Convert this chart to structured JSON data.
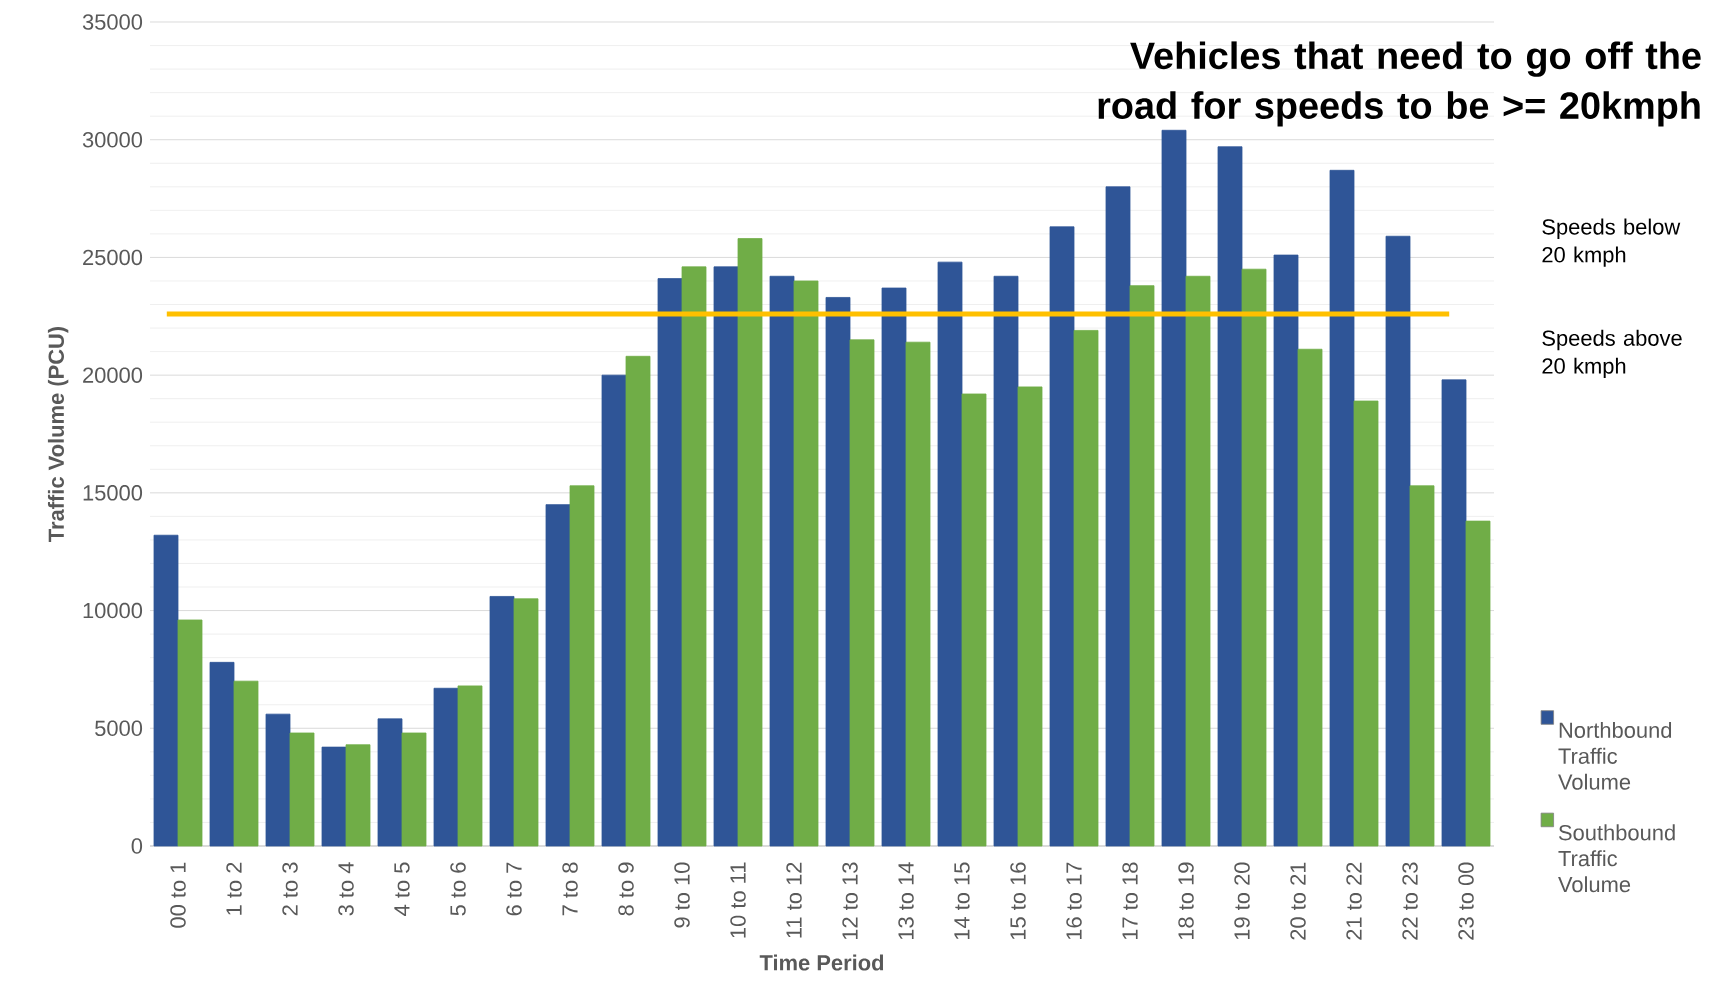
{
  "chart_data": {
    "type": "bar",
    "title": "Vehicles that need to go off the road for speeds to be >= 20kmph",
    "xlabel": "Time Period",
    "ylabel": "Traffic Volume (PCU)",
    "categories": [
      "00 to 1",
      "1 to 2",
      "2 to 3",
      "3 to 4",
      "4 to 5",
      "5 to 6",
      "6 to 7",
      "7 to 8",
      "8 to 9",
      "9 to 10",
      "10 to 11",
      "11 to 12",
      "12 to 13",
      "13 to 14",
      "14 to 15",
      "15 to 16",
      "16 to 17",
      "17 to 18",
      "18 to 19",
      "19 to 20",
      "20 to 21",
      "21 to 22",
      "22 to 23",
      "23 to 00"
    ],
    "series": [
      {
        "name": "Northbound Traffic Volume",
        "color": "#2f5597",
        "values": [
          13200,
          7800,
          5600,
          4200,
          5400,
          6700,
          10600,
          14500,
          20000,
          24100,
          24600,
          24200,
          23300,
          23700,
          24800,
          24200,
          26300,
          28000,
          30400,
          29700,
          25100,
          28700,
          25900,
          19800
        ]
      },
      {
        "name": "Southbound Traffic Volume",
        "color": "#70ad47",
        "values": [
          9600,
          7000,
          4800,
          4300,
          4800,
          6800,
          10500,
          15300,
          20800,
          24600,
          25800,
          24000,
          21500,
          21400,
          19200,
          19500,
          21900,
          23800,
          24200,
          24500,
          21100,
          18900,
          15300,
          13800
        ]
      }
    ],
    "ylim": [
      0,
      35000
    ],
    "yticks": [
      0,
      5000,
      10000,
      15000,
      20000,
      25000,
      30000,
      35000
    ],
    "ref_lines": [
      {
        "axis": "y",
        "value": 22600,
        "color": "#ffc000"
      }
    ],
    "annotations": [
      "Speeds below 20 kmph",
      "Speeds above 20 kmph"
    ],
    "grid": "y",
    "legend": "right"
  }
}
